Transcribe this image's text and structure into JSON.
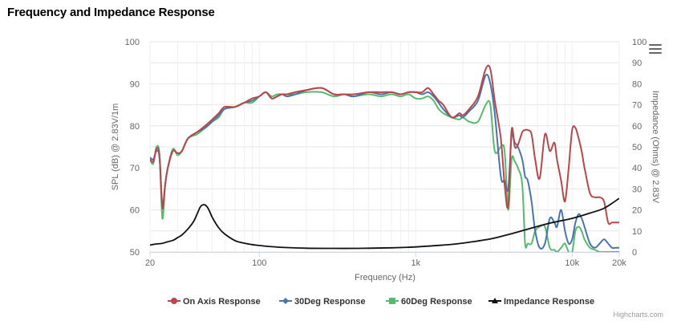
{
  "title": "Frequency and Impedance Response",
  "credits": "Highcharts.com",
  "menu_icon": "hamburger-menu-icon",
  "chart_data": {
    "type": "line",
    "x_scale": "log",
    "xlim": [
      20,
      20000
    ],
    "x_ticks": [
      20,
      100,
      1000,
      10000,
      20000
    ],
    "x_tick_labels": [
      "20",
      "100",
      "1k",
      "10k",
      "20k"
    ],
    "xlabel": "Frequency (Hz)",
    "ylabel": "SPL (dB) @ 2.83V/1m",
    "ylim": [
      50,
      100
    ],
    "y_ticks": [
      50,
      60,
      70,
      80,
      90,
      100
    ],
    "y2label": "Impedance (Ohms) @ 2.83V",
    "y2lim": [
      0,
      100
    ],
    "y2_ticks": [
      0,
      10,
      20,
      30,
      40,
      50,
      60,
      70,
      80,
      90,
      100
    ],
    "grid": true,
    "legend_position": "bottom-center",
    "series": [
      {
        "name": "On Axis Response",
        "color": "#b5484b",
        "axis": "left",
        "marker": "circle",
        "x": [
          20,
          21,
          22,
          23,
          24,
          25,
          26,
          28,
          30,
          32,
          35,
          40,
          45,
          50,
          55,
          60,
          70,
          80,
          90,
          100,
          110,
          120,
          130,
          140,
          150,
          170,
          200,
          250,
          300,
          350,
          400,
          500,
          600,
          700,
          800,
          900,
          1000,
          1100,
          1200,
          1300,
          1400,
          1500,
          1700,
          1900,
          2000,
          2200,
          2500,
          2800,
          3000,
          3200,
          3500,
          3700,
          3900,
          4100,
          4300,
          4500,
          4800,
          5000,
          5200,
          5500,
          5800,
          6200,
          6700,
          7200,
          7700,
          8000,
          8500,
          9000,
          9500,
          10000,
          10500,
          11000,
          11500,
          12000,
          13000,
          14000,
          15000,
          16000,
          17000,
          18000,
          19000,
          20000
        ],
        "y": [
          72,
          71.5,
          74.5,
          73,
          60.5,
          66,
          70,
          74,
          73.5,
          74,
          77,
          78.5,
          80,
          81.5,
          83,
          84.5,
          84.5,
          85.5,
          86.5,
          87,
          88,
          86.5,
          87,
          87.5,
          87.5,
          88,
          88.5,
          89,
          87.5,
          87.5,
          87.5,
          88,
          88,
          88,
          87.5,
          88,
          88,
          88,
          89,
          87.5,
          86,
          85,
          82,
          83,
          82.5,
          84,
          87,
          93.5,
          93.5,
          86,
          77,
          66,
          61,
          79,
          75,
          75.5,
          78.5,
          79,
          79,
          78,
          72,
          67.5,
          78,
          74,
          76,
          72,
          67,
          62,
          70,
          79,
          79.5,
          77,
          74,
          70,
          64,
          63,
          63,
          62,
          57,
          57,
          57,
          57
        ]
      },
      {
        "name": "30Deg Response",
        "color": "#4a75a8",
        "axis": "left",
        "marker": "diamond",
        "x": [
          20,
          21,
          22,
          23,
          24,
          25,
          26,
          28,
          30,
          32,
          35,
          40,
          45,
          50,
          55,
          60,
          70,
          80,
          90,
          100,
          110,
          120,
          130,
          140,
          150,
          170,
          200,
          250,
          300,
          350,
          400,
          500,
          600,
          700,
          800,
          900,
          1000,
          1100,
          1200,
          1300,
          1400,
          1500,
          1700,
          1900,
          2000,
          2200,
          2500,
          2800,
          3000,
          3200,
          3500,
          3700,
          3900,
          4100,
          4300,
          4500,
          4800,
          5000,
          5200,
          5500,
          5800,
          6200,
          6700,
          7200,
          7700,
          8000,
          8500,
          9000,
          9500,
          10000,
          10500,
          11000,
          11500,
          12000,
          13000,
          14000,
          15000,
          16000,
          17000,
          18000,
          19000,
          20000
        ],
        "y": [
          72.5,
          72,
          74,
          72.5,
          61,
          66,
          70,
          74,
          73.5,
          74,
          77,
          78.5,
          79.5,
          81,
          82.5,
          84,
          84.5,
          85.5,
          86,
          87,
          88,
          86.5,
          87,
          87.5,
          87,
          87.5,
          88.5,
          89,
          87.5,
          87.5,
          87,
          88,
          87.5,
          88,
          87.5,
          88,
          88,
          87.5,
          88,
          87,
          85.5,
          84,
          82,
          82.5,
          82,
          83.5,
          86,
          92,
          90,
          83,
          68,
          67,
          65,
          77.5,
          76,
          75,
          72,
          68,
          67,
          62,
          55,
          51,
          52,
          58,
          57,
          56,
          60,
          55,
          52,
          53,
          57,
          59,
          58,
          56,
          52,
          51,
          52,
          53,
          52,
          51,
          51,
          51
        ]
      },
      {
        "name": "60Deg Response",
        "color": "#5cb870",
        "axis": "left",
        "marker": "square",
        "x": [
          20,
          21,
          22,
          23,
          24,
          25,
          26,
          28,
          30,
          32,
          35,
          40,
          45,
          50,
          55,
          60,
          70,
          80,
          90,
          100,
          110,
          120,
          130,
          140,
          150,
          170,
          200,
          250,
          300,
          350,
          400,
          500,
          600,
          700,
          800,
          900,
          1000,
          1100,
          1200,
          1300,
          1400,
          1500,
          1700,
          1900,
          2000,
          2200,
          2500,
          2800,
          3000,
          3200,
          3500,
          3700,
          3900,
          4100,
          4300,
          4500,
          4800,
          5000,
          5200,
          5500,
          5800,
          6200,
          6700,
          7200,
          7700,
          8000,
          8500,
          9000,
          9500,
          10000,
          10500,
          11000,
          11500,
          12000,
          13000,
          14000,
          15000,
          16000,
          17000,
          18000,
          19000,
          20000
        ],
        "y": [
          72,
          71,
          75,
          73,
          58,
          66,
          70,
          74.5,
          73,
          74,
          77,
          78,
          79.5,
          81,
          82,
          84,
          84.5,
          85.5,
          85.5,
          87,
          88,
          87,
          87.5,
          87.5,
          87.5,
          87.5,
          88,
          88,
          87,
          87.5,
          87,
          87.5,
          87,
          87.5,
          87,
          87.5,
          86.5,
          86.5,
          87,
          86,
          84,
          83,
          82,
          81.5,
          82,
          81,
          81,
          85,
          85,
          74,
          75,
          74,
          60,
          72,
          71.5,
          70,
          66,
          52,
          52,
          52,
          55,
          56,
          56,
          51,
          50.5,
          50,
          51,
          52,
          50,
          50,
          55,
          56,
          55,
          53,
          51,
          50.5,
          50,
          50,
          50,
          50,
          50,
          50
        ]
      },
      {
        "name": "Impedance Response",
        "color": "#111111",
        "axis": "right",
        "marker": "triangle",
        "x": [
          20,
          22,
          24,
          26,
          28,
          30,
          32,
          35,
          38,
          40,
          42,
          44,
          46,
          48,
          50,
          55,
          60,
          70,
          80,
          90,
          100,
          120,
          150,
          200,
          300,
          400,
          500,
          700,
          1000,
          1500,
          2000,
          3000,
          4000,
          5000,
          7000,
          10000,
          13000,
          16000,
          20000
        ],
        "y": [
          3.3,
          3.8,
          4.1,
          4.9,
          5.5,
          6.8,
          8.1,
          11,
          14.5,
          18,
          21.5,
          22.5,
          21.8,
          19.5,
          16.5,
          11.5,
          8.6,
          5.4,
          4.2,
          3.5,
          3.1,
          2.5,
          2.1,
          1.8,
          1.7,
          1.7,
          1.8,
          2,
          2.4,
          3.3,
          4.2,
          6.2,
          8.5,
          10.5,
          13.5,
          16,
          18.5,
          20.8,
          25.5
        ]
      }
    ]
  }
}
